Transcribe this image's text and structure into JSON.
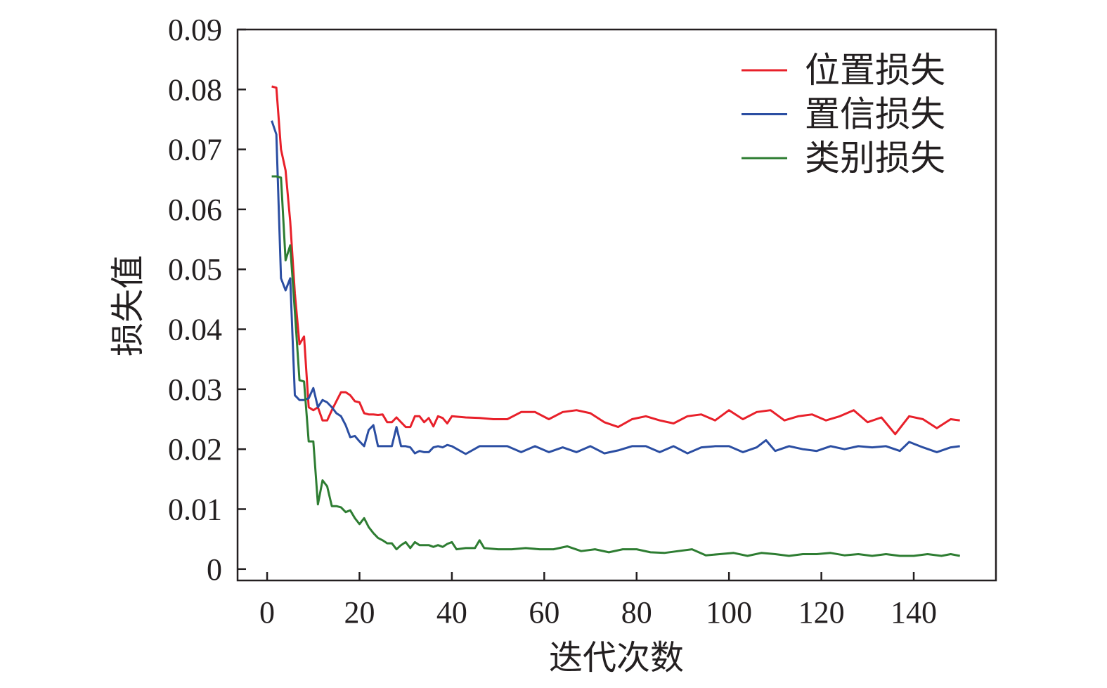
{
  "chart_data": {
    "type": "line",
    "title": "",
    "xlabel": "迭代次数",
    "ylabel": "损失值",
    "xlim": [
      -6.4,
      157.8
    ],
    "ylim": [
      -0.0019,
      0.09
    ],
    "xticks": [
      "0",
      "20",
      "40",
      "60",
      "80",
      "100",
      "120",
      "140"
    ],
    "xtick_values": [
      0,
      20,
      40,
      60,
      80,
      100,
      120,
      140
    ],
    "yticks": [
      "0",
      "0.01",
      "0.02",
      "0.03",
      "0.04",
      "0.05",
      "0.06",
      "0.07",
      "0.08",
      "0.09"
    ],
    "ytick_values": [
      0,
      0.01,
      0.02,
      0.03,
      0.04,
      0.05,
      0.06,
      0.07,
      0.08,
      0.09
    ],
    "grid": false,
    "legend_position": "top-right",
    "series": [
      {
        "name": "位置损失",
        "color": "#e8202a",
        "points": [
          [
            1,
            0.0805
          ],
          [
            2,
            0.0803
          ],
          [
            3,
            0.07
          ],
          [
            4,
            0.0665
          ],
          [
            5,
            0.058
          ],
          [
            6,
            0.046
          ],
          [
            7,
            0.0375
          ],
          [
            8,
            0.0388
          ],
          [
            9,
            0.027
          ],
          [
            10,
            0.0265
          ],
          [
            11,
            0.027
          ],
          [
            12,
            0.0248
          ],
          [
            13,
            0.0248
          ],
          [
            14,
            0.0265
          ],
          [
            15,
            0.028
          ],
          [
            16,
            0.0295
          ],
          [
            17,
            0.0295
          ],
          [
            18,
            0.029
          ],
          [
            19,
            0.028
          ],
          [
            20,
            0.0278
          ],
          [
            21,
            0.026
          ],
          [
            22,
            0.0258
          ],
          [
            23,
            0.0258
          ],
          [
            24,
            0.0257
          ],
          [
            25,
            0.0258
          ],
          [
            26,
            0.0245
          ],
          [
            27,
            0.0245
          ],
          [
            28,
            0.0253
          ],
          [
            29,
            0.0245
          ],
          [
            30,
            0.0237
          ],
          [
            31,
            0.0237
          ],
          [
            32,
            0.0255
          ],
          [
            33,
            0.0255
          ],
          [
            34,
            0.0245
          ],
          [
            35,
            0.0252
          ],
          [
            36,
            0.0238
          ],
          [
            37,
            0.0255
          ],
          [
            38,
            0.0252
          ],
          [
            39,
            0.0243
          ],
          [
            40,
            0.0255
          ],
          [
            43,
            0.0253
          ],
          [
            46,
            0.0252
          ],
          [
            49,
            0.025
          ],
          [
            52,
            0.025
          ],
          [
            55,
            0.0262
          ],
          [
            58,
            0.0262
          ],
          [
            61,
            0.025
          ],
          [
            64,
            0.0262
          ],
          [
            67,
            0.0265
          ],
          [
            70,
            0.026
          ],
          [
            73,
            0.0245
          ],
          [
            76,
            0.0237
          ],
          [
            79,
            0.025
          ],
          [
            82,
            0.0255
          ],
          [
            85,
            0.0248
          ],
          [
            88,
            0.0243
          ],
          [
            91,
            0.0255
          ],
          [
            94,
            0.0258
          ],
          [
            97,
            0.0248
          ],
          [
            100,
            0.0265
          ],
          [
            103,
            0.025
          ],
          [
            106,
            0.0262
          ],
          [
            109,
            0.0265
          ],
          [
            112,
            0.0248
          ],
          [
            115,
            0.0255
          ],
          [
            118,
            0.0258
          ],
          [
            121,
            0.0248
          ],
          [
            124,
            0.0255
          ],
          [
            127,
            0.0265
          ],
          [
            130,
            0.0245
          ],
          [
            133,
            0.0253
          ],
          [
            136,
            0.0225
          ],
          [
            139,
            0.0255
          ],
          [
            142,
            0.025
          ],
          [
            145,
            0.0235
          ],
          [
            148,
            0.025
          ],
          [
            150,
            0.0248
          ]
        ]
      },
      {
        "name": "置信损失",
        "color": "#2b4ea2",
        "points": [
          [
            1,
            0.0748
          ],
          [
            2,
            0.0725
          ],
          [
            3,
            0.0485
          ],
          [
            4,
            0.0465
          ],
          [
            5,
            0.0485
          ],
          [
            6,
            0.029
          ],
          [
            7,
            0.0282
          ],
          [
            8,
            0.0282
          ],
          [
            9,
            0.0285
          ],
          [
            10,
            0.0302
          ],
          [
            11,
            0.027
          ],
          [
            12,
            0.0282
          ],
          [
            13,
            0.0278
          ],
          [
            14,
            0.027
          ],
          [
            15,
            0.026
          ],
          [
            16,
            0.0255
          ],
          [
            17,
            0.024
          ],
          [
            18,
            0.022
          ],
          [
            19,
            0.0222
          ],
          [
            20,
            0.0213
          ],
          [
            21,
            0.0205
          ],
          [
            22,
            0.0232
          ],
          [
            23,
            0.024
          ],
          [
            24,
            0.0205
          ],
          [
            25,
            0.0205
          ],
          [
            26,
            0.0205
          ],
          [
            27,
            0.0205
          ],
          [
            28,
            0.0237
          ],
          [
            29,
            0.0205
          ],
          [
            30,
            0.0205
          ],
          [
            31,
            0.0203
          ],
          [
            32,
            0.0193
          ],
          [
            33,
            0.0197
          ],
          [
            34,
            0.0195
          ],
          [
            35,
            0.0195
          ],
          [
            36,
            0.0203
          ],
          [
            37,
            0.0205
          ],
          [
            38,
            0.0203
          ],
          [
            39,
            0.0207
          ],
          [
            40,
            0.0205
          ],
          [
            43,
            0.0192
          ],
          [
            46,
            0.0205
          ],
          [
            49,
            0.0205
          ],
          [
            52,
            0.0205
          ],
          [
            55,
            0.0195
          ],
          [
            58,
            0.0205
          ],
          [
            61,
            0.0195
          ],
          [
            64,
            0.0203
          ],
          [
            67,
            0.0195
          ],
          [
            70,
            0.0205
          ],
          [
            73,
            0.0193
          ],
          [
            76,
            0.0198
          ],
          [
            79,
            0.0205
          ],
          [
            82,
            0.0205
          ],
          [
            85,
            0.0195
          ],
          [
            88,
            0.0205
          ],
          [
            91,
            0.0193
          ],
          [
            94,
            0.0203
          ],
          [
            97,
            0.0205
          ],
          [
            100,
            0.0205
          ],
          [
            103,
            0.0195
          ],
          [
            106,
            0.0203
          ],
          [
            108,
            0.0215
          ],
          [
            110,
            0.0197
          ],
          [
            113,
            0.0205
          ],
          [
            116,
            0.02
          ],
          [
            119,
            0.0197
          ],
          [
            122,
            0.0205
          ],
          [
            125,
            0.02
          ],
          [
            128,
            0.0205
          ],
          [
            131,
            0.0203
          ],
          [
            134,
            0.0205
          ],
          [
            137,
            0.0197
          ],
          [
            139,
            0.0212
          ],
          [
            142,
            0.0203
          ],
          [
            145,
            0.0195
          ],
          [
            148,
            0.0203
          ],
          [
            150,
            0.0205
          ]
        ]
      },
      {
        "name": "类别损失",
        "color": "#2e7d32",
        "points": [
          [
            1,
            0.0655
          ],
          [
            2,
            0.0655
          ],
          [
            3,
            0.0653
          ],
          [
            4,
            0.0515
          ],
          [
            5,
            0.054
          ],
          [
            6,
            0.043
          ],
          [
            7,
            0.0315
          ],
          [
            8,
            0.0313
          ],
          [
            9,
            0.0213
          ],
          [
            10,
            0.0213
          ],
          [
            11,
            0.0108
          ],
          [
            12,
            0.0148
          ],
          [
            13,
            0.0138
          ],
          [
            14,
            0.0105
          ],
          [
            15,
            0.0105
          ],
          [
            16,
            0.0103
          ],
          [
            17,
            0.0095
          ],
          [
            18,
            0.0098
          ],
          [
            19,
            0.0085
          ],
          [
            20,
            0.0075
          ],
          [
            21,
            0.0085
          ],
          [
            22,
            0.007
          ],
          [
            23,
            0.006
          ],
          [
            24,
            0.0052
          ],
          [
            25,
            0.0048
          ],
          [
            26,
            0.0043
          ],
          [
            27,
            0.0043
          ],
          [
            28,
            0.0033
          ],
          [
            29,
            0.004
          ],
          [
            30,
            0.0045
          ],
          [
            31,
            0.0035
          ],
          [
            32,
            0.0045
          ],
          [
            33,
            0.004
          ],
          [
            34,
            0.004
          ],
          [
            35,
            0.004
          ],
          [
            36,
            0.0037
          ],
          [
            37,
            0.004
          ],
          [
            38,
            0.0037
          ],
          [
            39,
            0.0042
          ],
          [
            40,
            0.0045
          ],
          [
            41,
            0.0033
          ],
          [
            43,
            0.0035
          ],
          [
            45,
            0.0035
          ],
          [
            46,
            0.0048
          ],
          [
            47,
            0.0035
          ],
          [
            50,
            0.0033
          ],
          [
            53,
            0.0033
          ],
          [
            56,
            0.0035
          ],
          [
            59,
            0.0033
          ],
          [
            62,
            0.0033
          ],
          [
            65,
            0.0038
          ],
          [
            68,
            0.003
          ],
          [
            71,
            0.0033
          ],
          [
            74,
            0.0028
          ],
          [
            77,
            0.0033
          ],
          [
            80,
            0.0033
          ],
          [
            83,
            0.0028
          ],
          [
            86,
            0.0027
          ],
          [
            89,
            0.003
          ],
          [
            92,
            0.0033
          ],
          [
            95,
            0.0023
          ],
          [
            98,
            0.0025
          ],
          [
            101,
            0.0027
          ],
          [
            104,
            0.0022
          ],
          [
            107,
            0.0027
          ],
          [
            110,
            0.0025
          ],
          [
            113,
            0.0022
          ],
          [
            116,
            0.0025
          ],
          [
            119,
            0.0025
          ],
          [
            122,
            0.0027
          ],
          [
            125,
            0.0023
          ],
          [
            128,
            0.0025
          ],
          [
            131,
            0.0022
          ],
          [
            134,
            0.0025
          ],
          [
            137,
            0.0022
          ],
          [
            140,
            0.0022
          ],
          [
            143,
            0.0025
          ],
          [
            146,
            0.0022
          ],
          [
            148,
            0.0025
          ],
          [
            150,
            0.0022
          ]
        ]
      }
    ]
  }
}
